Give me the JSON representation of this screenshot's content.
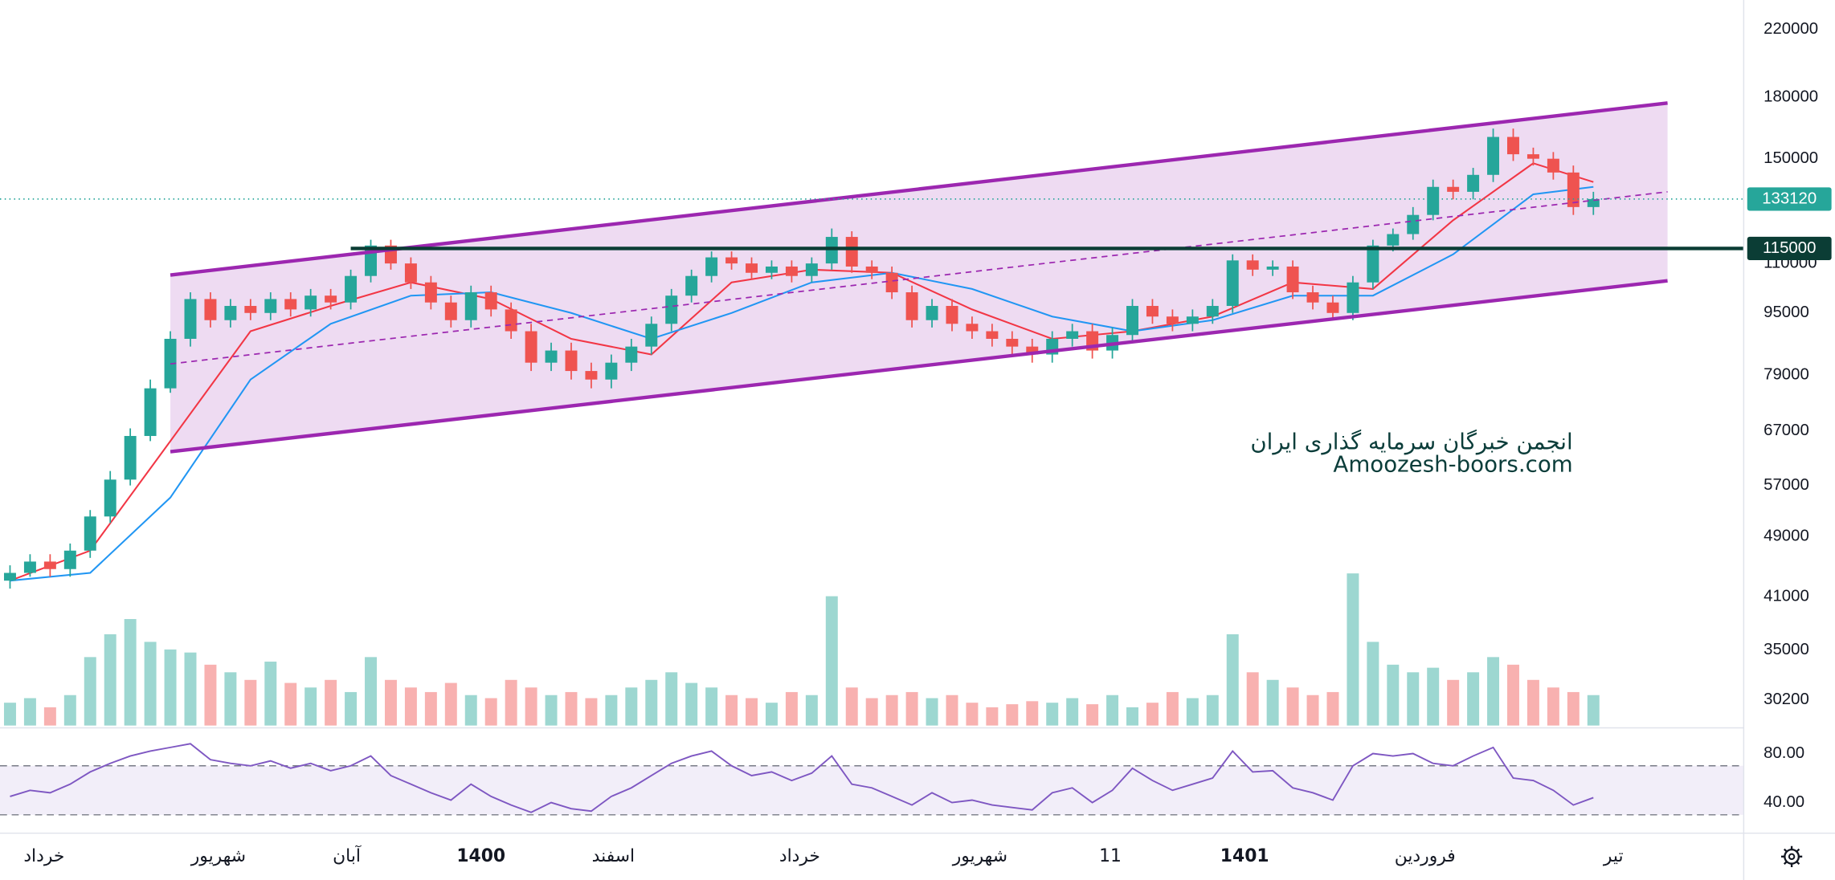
{
  "chart_data": {
    "type": "candlestick",
    "log_scale": true,
    "xlim": [
      -0.5,
      86.5
    ],
    "ylim": [
      28000,
      240000
    ],
    "yticks": [
      220000,
      180000,
      150000,
      110000,
      95000,
      79000,
      67000,
      57000,
      49000,
      41000,
      35000,
      30200
    ],
    "xticks": [
      {
        "value": 1.7,
        "label": "خرداد"
      },
      {
        "value": 10.4,
        "label": "شهریور"
      },
      {
        "value": 16.8,
        "label": "آبان"
      },
      {
        "value": 23.5,
        "label": "1400",
        "bold": true
      },
      {
        "value": 30.1,
        "label": "اسفند"
      },
      {
        "value": 39.4,
        "label": "خرداد"
      },
      {
        "value": 48.4,
        "label": "شهریور"
      },
      {
        "value": 54.9,
        "label": "11"
      },
      {
        "value": 61.6,
        "label": "1401",
        "bold": true
      },
      {
        "value": 70.6,
        "label": "فروردین"
      },
      {
        "value": 80,
        "label": "تیر"
      }
    ],
    "up_color": "#26a69a",
    "down_color": "#ef5350",
    "ohlc": [
      [
        43000,
        45000,
        42000,
        44000
      ],
      [
        44000,
        46500,
        43500,
        45500
      ],
      [
        45500,
        46500,
        43500,
        44500
      ],
      [
        44500,
        48000,
        43500,
        47000
      ],
      [
        47000,
        53000,
        46000,
        52000
      ],
      [
        52000,
        59500,
        51000,
        58000
      ],
      [
        58000,
        67500,
        57000,
        66000
      ],
      [
        66000,
        78000,
        65000,
        76000
      ],
      [
        76000,
        90000,
        75000,
        88000
      ],
      [
        88000,
        101000,
        86000,
        99000
      ],
      [
        99000,
        101000,
        91000,
        93000
      ],
      [
        93000,
        99000,
        91000,
        97000
      ],
      [
        97000,
        99000,
        93000,
        95000
      ],
      [
        95000,
        101000,
        93000,
        99000
      ],
      [
        99000,
        101000,
        94000,
        96000
      ],
      [
        96000,
        102000,
        94000,
        100000
      ],
      [
        100000,
        102000,
        96000,
        98000
      ],
      [
        98000,
        108000,
        96000,
        106000
      ],
      [
        106000,
        118000,
        104000,
        116000
      ],
      [
        116000,
        118000,
        108000,
        110000
      ],
      [
        110000,
        112000,
        102000,
        104000
      ],
      [
        104000,
        106000,
        96000,
        98000
      ],
      [
        98000,
        100000,
        91000,
        93000
      ],
      [
        93000,
        103000,
        91000,
        101000
      ],
      [
        101000,
        103000,
        94000,
        96000
      ],
      [
        96000,
        98000,
        88000,
        90000
      ],
      [
        90000,
        92000,
        80000,
        82000
      ],
      [
        82000,
        87000,
        80000,
        85000
      ],
      [
        85000,
        87000,
        78000,
        80000
      ],
      [
        80000,
        82000,
        76000,
        78000
      ],
      [
        78000,
        84000,
        76000,
        82000
      ],
      [
        82000,
        88000,
        80000,
        86000
      ],
      [
        86000,
        94000,
        84000,
        92000
      ],
      [
        92000,
        102000,
        90000,
        100000
      ],
      [
        100000,
        108000,
        98000,
        106000
      ],
      [
        106000,
        114000,
        104000,
        112000
      ],
      [
        112000,
        114000,
        108000,
        110000
      ],
      [
        110000,
        112000,
        105000,
        107000
      ],
      [
        107000,
        111000,
        105000,
        109000
      ],
      [
        109000,
        111000,
        104000,
        106000
      ],
      [
        106000,
        112000,
        104000,
        110000
      ],
      [
        110000,
        122000,
        108000,
        119000
      ],
      [
        119000,
        121000,
        107000,
        109000
      ],
      [
        109000,
        111000,
        105000,
        107000
      ],
      [
        107000,
        109000,
        99000,
        101000
      ],
      [
        101000,
        103000,
        91000,
        93000
      ],
      [
        93000,
        99000,
        91000,
        97000
      ],
      [
        97000,
        99000,
        90000,
        92000
      ],
      [
        92000,
        94000,
        88000,
        90000
      ],
      [
        90000,
        92000,
        86000,
        88000
      ],
      [
        88000,
        90000,
        84000,
        86000
      ],
      [
        86000,
        88000,
        82000,
        84000
      ],
      [
        84000,
        90000,
        82000,
        88000
      ],
      [
        88000,
        92000,
        86000,
        90000
      ],
      [
        90000,
        92000,
        83000,
        85000
      ],
      [
        85000,
        91000,
        83000,
        89000
      ],
      [
        89000,
        99000,
        87000,
        97000
      ],
      [
        97000,
        99000,
        92000,
        94000
      ],
      [
        94000,
        96000,
        90000,
        92000
      ],
      [
        92000,
        96000,
        90000,
        94000
      ],
      [
        94000,
        99000,
        92000,
        97000
      ],
      [
        97000,
        113000,
        95000,
        111000
      ],
      [
        111000,
        113000,
        106000,
        108000
      ],
      [
        108000,
        111000,
        106000,
        109000
      ],
      [
        109000,
        111000,
        99000,
        101000
      ],
      [
        101000,
        103000,
        96000,
        98000
      ],
      [
        98000,
        100000,
        93000,
        95000
      ],
      [
        95000,
        106000,
        93000,
        104000
      ],
      [
        104000,
        118000,
        102000,
        116000
      ],
      [
        116000,
        122000,
        114000,
        120000
      ],
      [
        120000,
        130000,
        118000,
        127000
      ],
      [
        127000,
        141000,
        125000,
        138000
      ],
      [
        138000,
        141000,
        133000,
        136000
      ],
      [
        136000,
        146000,
        133000,
        143000
      ],
      [
        143000,
        164000,
        140000,
        160000
      ],
      [
        160000,
        164000,
        149000,
        152000
      ],
      [
        152000,
        155000,
        147000,
        150000
      ],
      [
        150000,
        153000,
        141000,
        144000
      ],
      [
        144000,
        147000,
        127000,
        130000
      ],
      [
        130000,
        136000,
        127000,
        133120
      ]
    ],
    "series": [
      {
        "color": "#f23645",
        "x": [
          0,
          4,
          8,
          12,
          16,
          20,
          24,
          28,
          32,
          36,
          40,
          44,
          48,
          52,
          56,
          60,
          64,
          68,
          72,
          76,
          79
        ],
        "values": [
          43000,
          47000,
          65000,
          90000,
          97000,
          104000,
          99000,
          88000,
          84000,
          104000,
          108000,
          107000,
          96000,
          88000,
          90000,
          94000,
          104000,
          102000,
          125000,
          148000,
          140000
        ]
      },
      {
        "color": "#2196f3",
        "x": [
          0,
          4,
          8,
          12,
          16,
          20,
          24,
          28,
          32,
          36,
          40,
          44,
          48,
          52,
          56,
          60,
          64,
          68,
          72,
          76,
          79
        ],
        "values": [
          43000,
          44000,
          55000,
          78000,
          92000,
          100000,
          101000,
          95000,
          88000,
          95000,
          104000,
          107000,
          102000,
          94000,
          90000,
          93000,
          100000,
          100000,
          113000,
          135000,
          138000
        ]
      }
    ],
    "channel": {
      "color": "#9c27b0",
      "x": [
        8,
        82.7
      ],
      "upper": [
        106300,
        176900
      ],
      "mid": [
        81700,
        136000
      ],
      "lower": [
        63000,
        104500
      ]
    },
    "level": {
      "value": 115000,
      "x_start": 17,
      "color": "#0b3d35"
    },
    "volume": {
      "values": [
        15,
        18,
        12,
        20,
        45,
        60,
        70,
        55,
        50,
        48,
        40,
        35,
        30,
        42,
        28,
        25,
        30,
        22,
        45,
        30,
        25,
        22,
        28,
        20,
        18,
        30,
        25,
        20,
        22,
        18,
        20,
        25,
        30,
        35,
        28,
        25,
        20,
        18,
        15,
        22,
        20,
        85,
        25,
        18,
        20,
        22,
        18,
        20,
        15,
        12,
        14,
        16,
        15,
        18,
        14,
        20,
        12,
        15,
        22,
        18,
        20,
        60,
        35,
        30,
        25,
        20,
        22,
        100,
        55,
        40,
        35,
        38,
        30,
        35,
        45,
        40,
        30,
        25,
        22,
        20
      ]
    },
    "rsi": {
      "color": "#7e57c2",
      "ylim": [
        15,
        100
      ],
      "yticks": [
        {
          "value": 80,
          "label": "80.00"
        },
        {
          "value": 40,
          "label": "40.00"
        }
      ],
      "bands": [
        30,
        70
      ],
      "values": [
        45,
        50,
        48,
        55,
        65,
        72,
        78,
        82,
        85,
        88,
        75,
        72,
        70,
        74,
        68,
        72,
        66,
        70,
        78,
        62,
        55,
        48,
        42,
        55,
        45,
        38,
        32,
        40,
        35,
        33,
        45,
        52,
        62,
        72,
        78,
        82,
        70,
        62,
        65,
        58,
        64,
        78,
        55,
        52,
        45,
        38,
        48,
        40,
        42,
        38,
        36,
        34,
        48,
        52,
        40,
        50,
        68,
        58,
        50,
        55,
        60,
        82,
        65,
        66,
        52,
        48,
        42,
        70,
        80,
        78,
        80,
        72,
        70,
        78,
        85,
        60,
        58,
        50,
        38,
        44
      ]
    },
    "watermark": [
      "انجمن خبرگان سرمایه گذاری ایران",
      "Amoozesh-boors.com"
    ]
  }
}
